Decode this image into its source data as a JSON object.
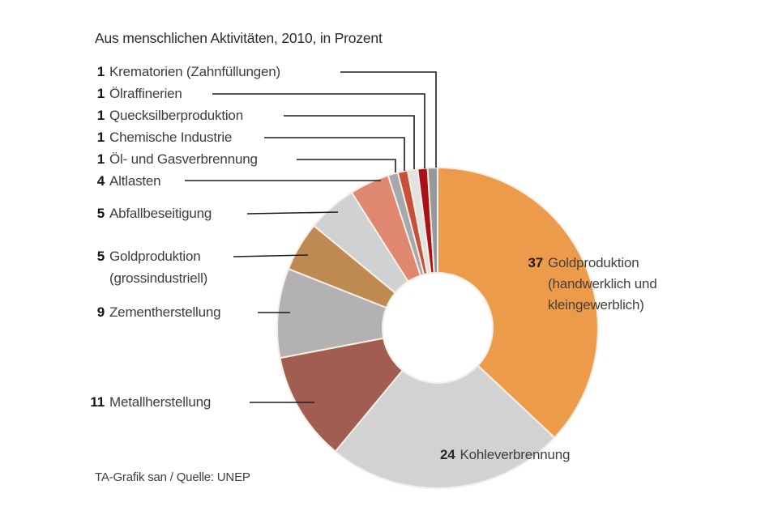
{
  "chart_data": {
    "type": "pie",
    "donut": true,
    "title": "Aus menschlichen Aktivitäten, 2010, in Prozent",
    "unit": "Prozent",
    "total": 100,
    "direction": "clockwise",
    "start_angle_deg": 0,
    "slices": [
      {
        "value": 37,
        "label": "Goldproduktion",
        "sublines": [
          "(handwerklich und",
          "kleingewerblich)"
        ],
        "color": "#ec9b4b"
      },
      {
        "value": 24,
        "label": "Kohleverbrennung",
        "color": "#d3d2d2"
      },
      {
        "value": 11,
        "label": "Metallherstellung",
        "color": "#a15d52"
      },
      {
        "value": 9,
        "label": "Zementherstellung",
        "color": "#b3b1b2"
      },
      {
        "value": 5,
        "label": "Goldproduktion",
        "sublines": [
          "(grossindustriell)"
        ],
        "color": "#bf8a52"
      },
      {
        "value": 5,
        "label": "Abfallbeseitigung",
        "color": "#cfd1d2"
      },
      {
        "value": 4,
        "label": "Altlasten",
        "color": "#e0886f"
      },
      {
        "value": 1,
        "label": "Öl- und Gasverbrennung",
        "color": "#a6a8ac"
      },
      {
        "value": 1,
        "label": "Chemische Industrie",
        "color": "#c8503a"
      },
      {
        "value": 1,
        "label": "Quecksilberproduktion",
        "color": "#e4e1e1"
      },
      {
        "value": 1,
        "label": "Ölraffinerien",
        "color": "#ab1016"
      },
      {
        "value": 1,
        "label": "Krematorien (Zahnfüllungen)",
        "color": "#97989c"
      }
    ],
    "source": "TA-Grafik san / Quelle: UNEP"
  }
}
